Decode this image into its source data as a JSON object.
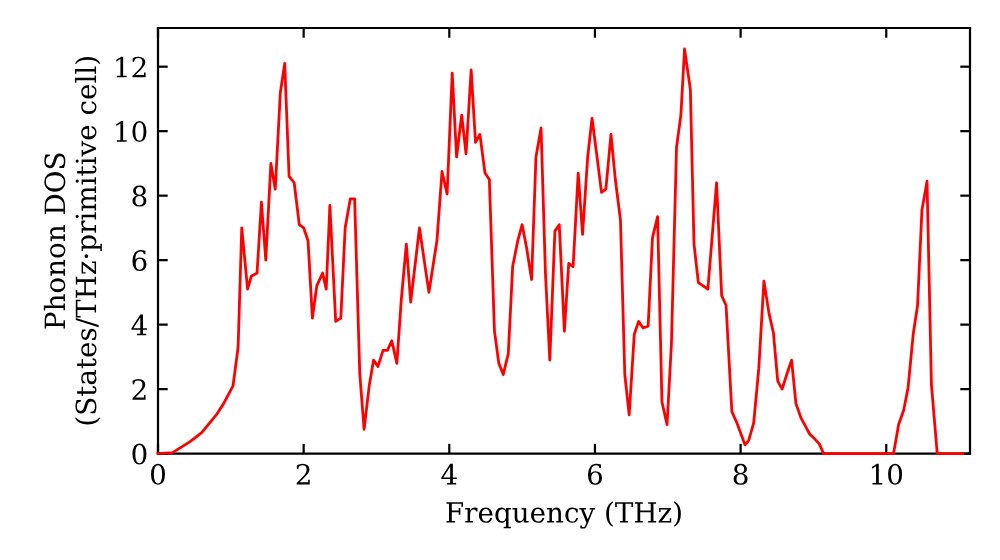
{
  "chart_data": {
    "type": "line",
    "xlabel": "Frequency (THz)",
    "ylabel": "Phonon DOS\n(States/THz·primitive cell)",
    "xlim": [
      0,
      11.15
    ],
    "ylim": [
      0,
      13.2
    ],
    "xticks": [
      0,
      2,
      4,
      6,
      8,
      10
    ],
    "yticks": [
      0,
      2,
      4,
      6,
      8,
      10,
      12
    ],
    "grid": false,
    "legend": false,
    "x": [
      0,
      0.2,
      0.44,
      0.6,
      0.8,
      0.9,
      1.03,
      1.1,
      1.15,
      1.23,
      1.28,
      1.36,
      1.42,
      1.48,
      1.55,
      1.61,
      1.68,
      1.74,
      1.8,
      1.87,
      1.94,
      2.0,
      2.06,
      2.12,
      2.18,
      2.26,
      2.31,
      2.36,
      2.44,
      2.51,
      2.57,
      2.64,
      2.7,
      2.77,
      2.83,
      2.9,
      2.96,
      3.02,
      3.09,
      3.15,
      3.21,
      3.28,
      3.34,
      3.41,
      3.47,
      3.59,
      3.72,
      3.83,
      3.9,
      3.97,
      4.04,
      4.1,
      4.17,
      4.23,
      4.3,
      4.36,
      4.42,
      4.49,
      4.55,
      4.62,
      4.68,
      4.74,
      4.81,
      4.87,
      4.94,
      5.0,
      5.06,
      5.13,
      5.19,
      5.26,
      5.32,
      5.38,
      5.45,
      5.51,
      5.58,
      5.64,
      5.7,
      5.77,
      5.83,
      5.9,
      5.96,
      6.02,
      6.09,
      6.15,
      6.22,
      6.28,
      6.35,
      6.41,
      6.47,
      6.54,
      6.6,
      6.66,
      6.73,
      6.79,
      6.86,
      6.92,
      6.99,
      7.05,
      7.12,
      7.18,
      7.23,
      7.31,
      7.36,
      7.42,
      7.55,
      7.67,
      7.74,
      7.8,
      7.88,
      7.95,
      8.06,
      8.11,
      8.18,
      8.25,
      8.32,
      8.39,
      8.45,
      8.51,
      8.57,
      8.64,
      8.7,
      8.76,
      8.83,
      8.89,
      8.95,
      9.02,
      9.08,
      9.14,
      10.1,
      10.17,
      10.24,
      10.3,
      10.37,
      10.43,
      10.49,
      10.56,
      10.62,
      10.7,
      11.05
    ],
    "series": [
      {
        "color": "#ff0000",
        "values": [
          0,
          0.03,
          0.37,
          0.65,
          1.2,
          1.55,
          2.1,
          3.3,
          7.0,
          5.1,
          5.5,
          5.6,
          7.8,
          6.0,
          9.0,
          8.2,
          11.2,
          12.1,
          8.6,
          8.4,
          7.1,
          7.0,
          6.6,
          4.2,
          5.2,
          5.6,
          5.1,
          7.7,
          4.1,
          4.2,
          7.0,
          7.9,
          7.9,
          2.5,
          0.75,
          2.1,
          2.9,
          2.7,
          3.2,
          3.2,
          3.5,
          2.8,
          4.75,
          6.5,
          4.7,
          7.0,
          5.0,
          6.6,
          8.75,
          8.05,
          11.8,
          9.2,
          10.5,
          9.3,
          11.9,
          9.65,
          9.9,
          8.7,
          8.5,
          3.8,
          2.8,
          2.45,
          3.1,
          5.8,
          6.6,
          7.1,
          6.4,
          5.4,
          9.2,
          10.1,
          5.6,
          2.9,
          6.9,
          7.1,
          3.8,
          5.9,
          5.8,
          8.7,
          6.8,
          9.2,
          10.4,
          9.35,
          8.1,
          8.2,
          9.9,
          8.5,
          7.25,
          2.45,
          1.2,
          3.7,
          4.1,
          3.9,
          3.95,
          6.7,
          7.35,
          1.6,
          0.9,
          3.4,
          9.5,
          10.5,
          12.55,
          11.3,
          6.5,
          5.3,
          5.1,
          8.4,
          4.9,
          4.6,
          1.3,
          0.95,
          0.27,
          0.4,
          0.95,
          2.65,
          5.35,
          4.35,
          3.75,
          2.25,
          2.0,
          2.5,
          2.9,
          1.55,
          1.1,
          0.85,
          0.6,
          0.45,
          0.3,
          0,
          0,
          0.9,
          1.35,
          2.05,
          3.7,
          4.6,
          7.55,
          8.45,
          2.15,
          0,
          0
        ]
      }
    ]
  }
}
